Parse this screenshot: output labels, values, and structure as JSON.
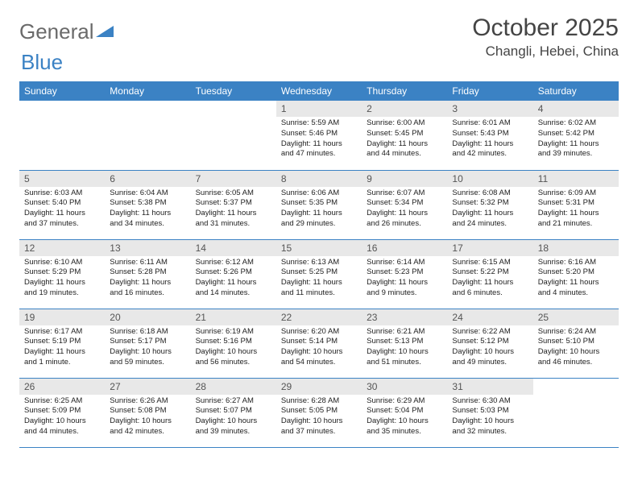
{
  "brand": {
    "part1": "General",
    "part2": "Blue"
  },
  "title": "October 2025",
  "location": "Changli, Hebei, China",
  "colors": {
    "header_bg": "#3b82c4",
    "header_text": "#ffffff",
    "daynum_bg": "#e8e8e8",
    "daynum_text": "#555555",
    "body_text": "#222222",
    "rule": "#3b82c4",
    "logo_gray": "#6a6a6a",
    "logo_blue": "#3b82c4"
  },
  "day_labels": [
    "Sunday",
    "Monday",
    "Tuesday",
    "Wednesday",
    "Thursday",
    "Friday",
    "Saturday"
  ],
  "weeks": [
    [
      null,
      null,
      null,
      {
        "n": "1",
        "sr": "5:59 AM",
        "ss": "5:46 PM",
        "dl": "11 hours and 47 minutes."
      },
      {
        "n": "2",
        "sr": "6:00 AM",
        "ss": "5:45 PM",
        "dl": "11 hours and 44 minutes."
      },
      {
        "n": "3",
        "sr": "6:01 AM",
        "ss": "5:43 PM",
        "dl": "11 hours and 42 minutes."
      },
      {
        "n": "4",
        "sr": "6:02 AM",
        "ss": "5:42 PM",
        "dl": "11 hours and 39 minutes."
      }
    ],
    [
      {
        "n": "5",
        "sr": "6:03 AM",
        "ss": "5:40 PM",
        "dl": "11 hours and 37 minutes."
      },
      {
        "n": "6",
        "sr": "6:04 AM",
        "ss": "5:38 PM",
        "dl": "11 hours and 34 minutes."
      },
      {
        "n": "7",
        "sr": "6:05 AM",
        "ss": "5:37 PM",
        "dl": "11 hours and 31 minutes."
      },
      {
        "n": "8",
        "sr": "6:06 AM",
        "ss": "5:35 PM",
        "dl": "11 hours and 29 minutes."
      },
      {
        "n": "9",
        "sr": "6:07 AM",
        "ss": "5:34 PM",
        "dl": "11 hours and 26 minutes."
      },
      {
        "n": "10",
        "sr": "6:08 AM",
        "ss": "5:32 PM",
        "dl": "11 hours and 24 minutes."
      },
      {
        "n": "11",
        "sr": "6:09 AM",
        "ss": "5:31 PM",
        "dl": "11 hours and 21 minutes."
      }
    ],
    [
      {
        "n": "12",
        "sr": "6:10 AM",
        "ss": "5:29 PM",
        "dl": "11 hours and 19 minutes."
      },
      {
        "n": "13",
        "sr": "6:11 AM",
        "ss": "5:28 PM",
        "dl": "11 hours and 16 minutes."
      },
      {
        "n": "14",
        "sr": "6:12 AM",
        "ss": "5:26 PM",
        "dl": "11 hours and 14 minutes."
      },
      {
        "n": "15",
        "sr": "6:13 AM",
        "ss": "5:25 PM",
        "dl": "11 hours and 11 minutes."
      },
      {
        "n": "16",
        "sr": "6:14 AM",
        "ss": "5:23 PM",
        "dl": "11 hours and 9 minutes."
      },
      {
        "n": "17",
        "sr": "6:15 AM",
        "ss": "5:22 PM",
        "dl": "11 hours and 6 minutes."
      },
      {
        "n": "18",
        "sr": "6:16 AM",
        "ss": "5:20 PM",
        "dl": "11 hours and 4 minutes."
      }
    ],
    [
      {
        "n": "19",
        "sr": "6:17 AM",
        "ss": "5:19 PM",
        "dl": "11 hours and 1 minute."
      },
      {
        "n": "20",
        "sr": "6:18 AM",
        "ss": "5:17 PM",
        "dl": "10 hours and 59 minutes."
      },
      {
        "n": "21",
        "sr": "6:19 AM",
        "ss": "5:16 PM",
        "dl": "10 hours and 56 minutes."
      },
      {
        "n": "22",
        "sr": "6:20 AM",
        "ss": "5:14 PM",
        "dl": "10 hours and 54 minutes."
      },
      {
        "n": "23",
        "sr": "6:21 AM",
        "ss": "5:13 PM",
        "dl": "10 hours and 51 minutes."
      },
      {
        "n": "24",
        "sr": "6:22 AM",
        "ss": "5:12 PM",
        "dl": "10 hours and 49 minutes."
      },
      {
        "n": "25",
        "sr": "6:24 AM",
        "ss": "5:10 PM",
        "dl": "10 hours and 46 minutes."
      }
    ],
    [
      {
        "n": "26",
        "sr": "6:25 AM",
        "ss": "5:09 PM",
        "dl": "10 hours and 44 minutes."
      },
      {
        "n": "27",
        "sr": "6:26 AM",
        "ss": "5:08 PM",
        "dl": "10 hours and 42 minutes."
      },
      {
        "n": "28",
        "sr": "6:27 AM",
        "ss": "5:07 PM",
        "dl": "10 hours and 39 minutes."
      },
      {
        "n": "29",
        "sr": "6:28 AM",
        "ss": "5:05 PM",
        "dl": "10 hours and 37 minutes."
      },
      {
        "n": "30",
        "sr": "6:29 AM",
        "ss": "5:04 PM",
        "dl": "10 hours and 35 minutes."
      },
      {
        "n": "31",
        "sr": "6:30 AM",
        "ss": "5:03 PM",
        "dl": "10 hours and 32 minutes."
      },
      null
    ]
  ],
  "labels": {
    "sunrise": "Sunrise:",
    "sunset": "Sunset:",
    "daylight": "Daylight:"
  }
}
